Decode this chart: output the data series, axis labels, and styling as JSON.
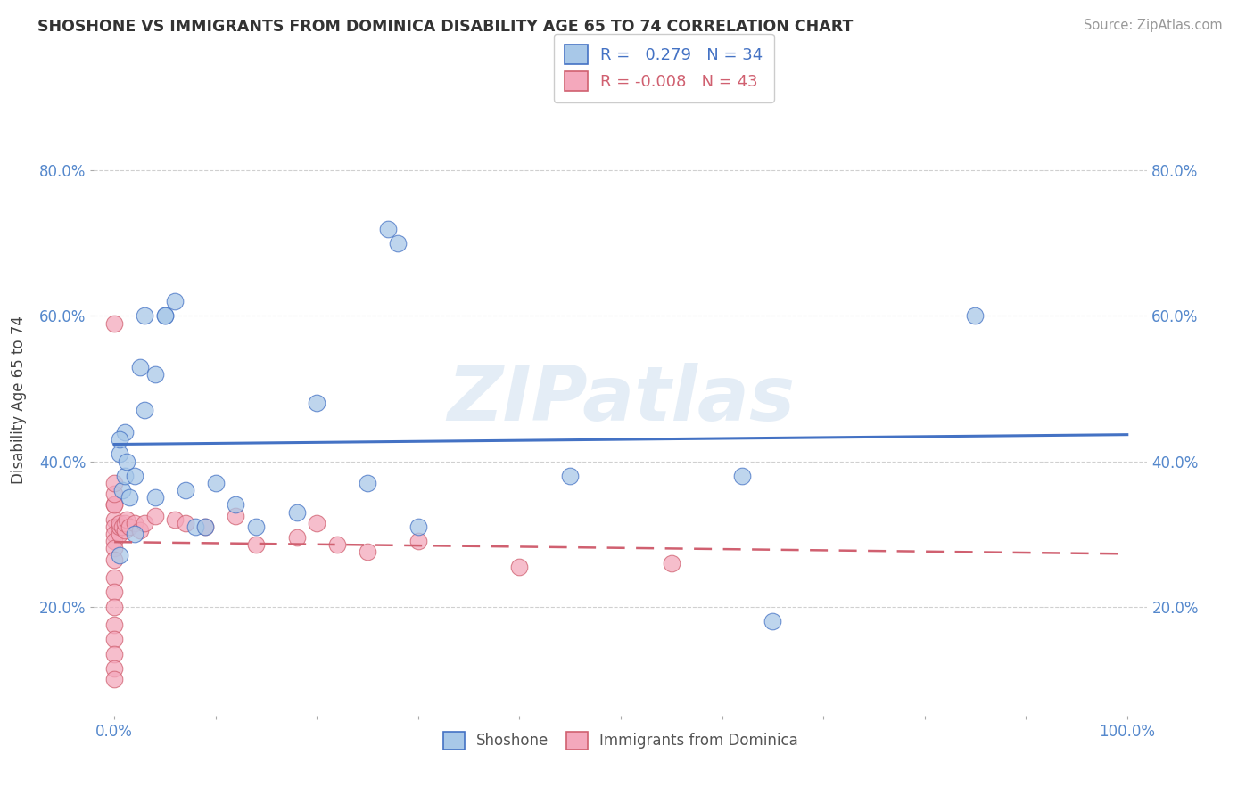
{
  "title": "SHOSHONE VS IMMIGRANTS FROM DOMINICA DISABILITY AGE 65 TO 74 CORRELATION CHART",
  "source": "Source: ZipAtlas.com",
  "ylabel": "Disability Age 65 to 74",
  "xlim": [
    -0.02,
    1.02
  ],
  "ylim": [
    0.05,
    0.92
  ],
  "yticks": [
    0.2,
    0.4,
    0.6,
    0.8
  ],
  "yticklabels": [
    "20.0%",
    "40.0%",
    "60.0%",
    "80.0%"
  ],
  "xtick_positions": [
    0.0,
    0.1,
    0.2,
    0.3,
    0.4,
    0.5,
    0.6,
    0.7,
    0.8,
    0.9,
    1.0
  ],
  "xticklabels_show": {
    "0.0": "0.0%",
    "1.0": "100.0%"
  },
  "legend_r1": "0.279",
  "legend_n1": "34",
  "legend_r2": "-0.008",
  "legend_n2": "43",
  "shoshone_color": "#a8c8e8",
  "immigrant_color": "#f4a8bc",
  "trendline1_color": "#4472c4",
  "trendline2_color": "#d06070",
  "watermark": "ZIPatlas",
  "shoshone_x": [
    0.005,
    0.008,
    0.01,
    0.01,
    0.012,
    0.015,
    0.02,
    0.02,
    0.025,
    0.03,
    0.03,
    0.04,
    0.04,
    0.05,
    0.05,
    0.06,
    0.07,
    0.08,
    0.09,
    0.1,
    0.12,
    0.14,
    0.18,
    0.2,
    0.25,
    0.27,
    0.28,
    0.3,
    0.45,
    0.62,
    0.65,
    0.85,
    0.005,
    0.005
  ],
  "shoshone_y": [
    0.41,
    0.36,
    0.38,
    0.44,
    0.4,
    0.35,
    0.38,
    0.3,
    0.53,
    0.47,
    0.6,
    0.35,
    0.52,
    0.6,
    0.6,
    0.62,
    0.36,
    0.31,
    0.31,
    0.37,
    0.34,
    0.31,
    0.33,
    0.48,
    0.37,
    0.72,
    0.7,
    0.31,
    0.38,
    0.38,
    0.18,
    0.6,
    0.43,
    0.27
  ],
  "immigrant_x": [
    0.0,
    0.0,
    0.0,
    0.0,
    0.0,
    0.0,
    0.0,
    0.0,
    0.0,
    0.0,
    0.0,
    0.0,
    0.0,
    0.0,
    0.0,
    0.0,
    0.0,
    0.0,
    0.005,
    0.005,
    0.005,
    0.008,
    0.01,
    0.01,
    0.012,
    0.015,
    0.02,
    0.025,
    0.03,
    0.04,
    0.06,
    0.07,
    0.09,
    0.12,
    0.14,
    0.18,
    0.2,
    0.22,
    0.25,
    0.3,
    0.4,
    0.55,
    0.0
  ],
  "immigrant_y": [
    0.34,
    0.32,
    0.31,
    0.3,
    0.29,
    0.28,
    0.265,
    0.24,
    0.22,
    0.2,
    0.175,
    0.155,
    0.135,
    0.115,
    0.1,
    0.34,
    0.355,
    0.37,
    0.3,
    0.31,
    0.315,
    0.31,
    0.305,
    0.315,
    0.32,
    0.31,
    0.315,
    0.305,
    0.315,
    0.325,
    0.32,
    0.315,
    0.31,
    0.325,
    0.285,
    0.295,
    0.315,
    0.285,
    0.275,
    0.29,
    0.255,
    0.26,
    0.59
  ],
  "background_color": "#ffffff",
  "grid_color": "#d0d0d0"
}
